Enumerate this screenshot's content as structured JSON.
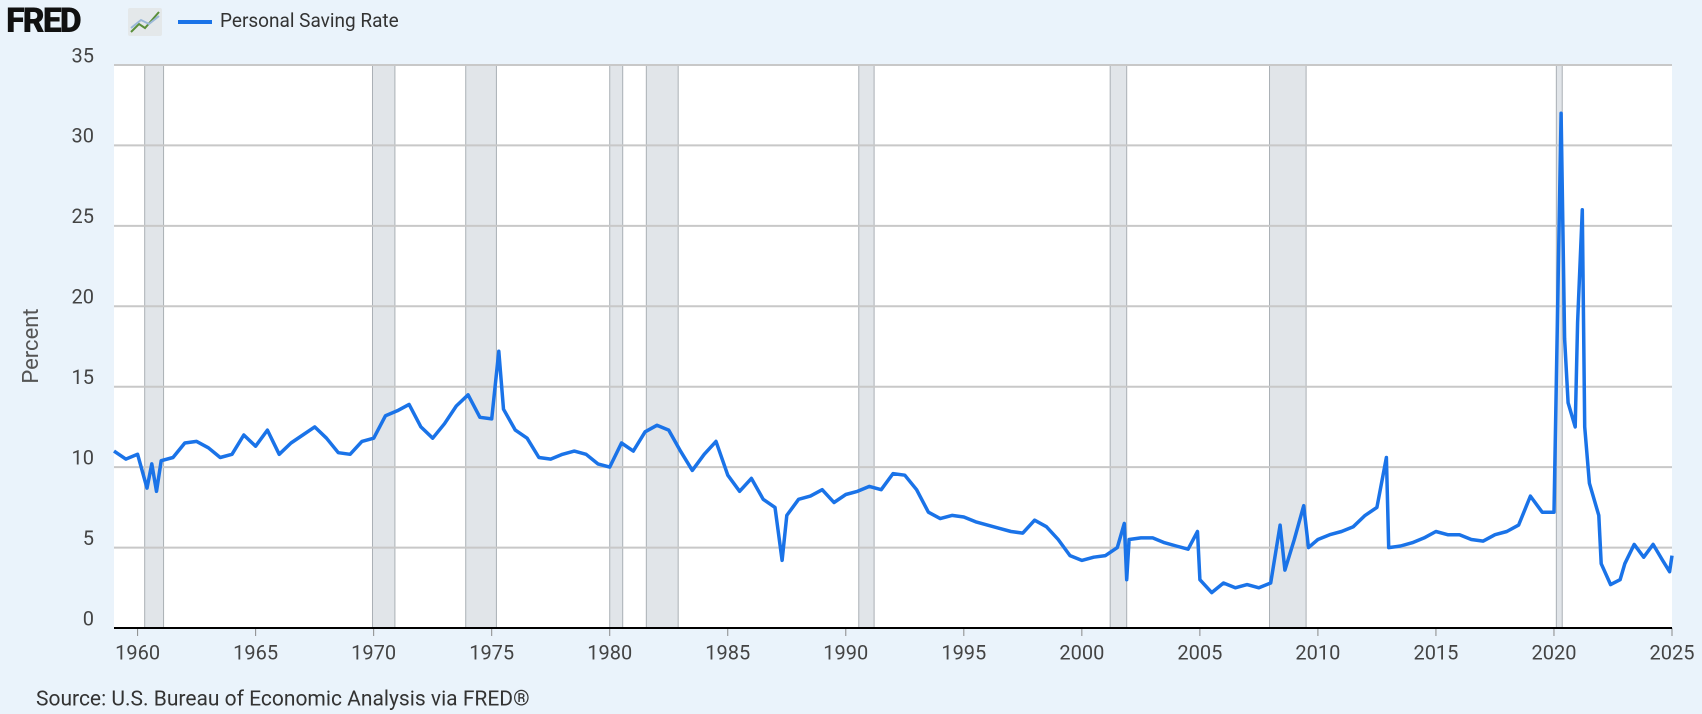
{
  "logo": "FRED",
  "source": "Source: U.S. Bureau of Economic Analysis via FRED®",
  "chart_data": {
    "type": "line",
    "ylabel": "Percent",
    "x": [
      1959.0,
      1959.5,
      1960.0,
      1960.4,
      1960.6,
      1960.8,
      1961.0,
      1961.5,
      1962.0,
      1962.5,
      1963.0,
      1963.5,
      1964.0,
      1964.5,
      1965.0,
      1965.5,
      1966.0,
      1966.5,
      1967.0,
      1967.5,
      1968.0,
      1968.5,
      1969.0,
      1969.5,
      1970.0,
      1970.5,
      1971.0,
      1971.5,
      1972.0,
      1972.5,
      1973.0,
      1973.5,
      1974.0,
      1974.5,
      1975.0,
      1975.3,
      1975.5,
      1976.0,
      1976.5,
      1977.0,
      1977.5,
      1978.0,
      1978.5,
      1979.0,
      1979.5,
      1980.0,
      1980.5,
      1981.0,
      1981.5,
      1982.0,
      1982.5,
      1983.0,
      1983.5,
      1984.0,
      1984.5,
      1985.0,
      1985.5,
      1986.0,
      1986.5,
      1987.0,
      1987.3,
      1987.5,
      1988.0,
      1988.5,
      1989.0,
      1989.5,
      1990.0,
      1990.5,
      1991.0,
      1991.5,
      1992.0,
      1992.5,
      1993.0,
      1993.5,
      1994.0,
      1994.5,
      1995.0,
      1995.5,
      1996.0,
      1996.5,
      1997.0,
      1997.5,
      1998.0,
      1998.5,
      1999.0,
      1999.5,
      2000.0,
      2000.5,
      2001.0,
      2001.5,
      2001.8,
      2001.9,
      2002.0,
      2002.5,
      2003.0,
      2003.5,
      2004.0,
      2004.5,
      2004.9,
      2005.0,
      2005.5,
      2006.0,
      2006.5,
      2007.0,
      2007.5,
      2008.0,
      2008.4,
      2008.6,
      2009.0,
      2009.4,
      2009.6,
      2010.0,
      2010.5,
      2011.0,
      2011.5,
      2012.0,
      2012.5,
      2012.9,
      2013.0,
      2013.5,
      2014.0,
      2014.5,
      2015.0,
      2015.5,
      2016.0,
      2016.5,
      2017.0,
      2017.5,
      2018.0,
      2018.5,
      2019.0,
      2019.5,
      2020.0,
      2020.3,
      2020.45,
      2020.6,
      2020.9,
      2021.0,
      2021.2,
      2021.3,
      2021.5,
      2021.9,
      2022.0,
      2022.4,
      2022.8,
      2023.0,
      2023.4,
      2023.8,
      2024.2,
      2024.6,
      2024.9,
      2025.0
    ],
    "series": [
      {
        "name": "Personal Saving Rate",
        "color": "#1a73e8",
        "values": [
          11.0,
          10.5,
          10.8,
          8.7,
          10.2,
          8.5,
          10.4,
          10.6,
          11.5,
          11.6,
          11.2,
          10.6,
          10.8,
          12.0,
          11.3,
          12.3,
          10.8,
          11.5,
          12.0,
          12.5,
          11.8,
          10.9,
          10.8,
          11.6,
          11.8,
          13.2,
          13.5,
          13.9,
          12.5,
          11.8,
          12.7,
          13.8,
          14.5,
          13.1,
          13.0,
          17.2,
          13.6,
          12.3,
          11.8,
          10.6,
          10.5,
          10.8,
          11.0,
          10.8,
          10.2,
          10.0,
          11.5,
          11.0,
          12.2,
          12.6,
          12.3,
          11.0,
          9.8,
          10.8,
          11.6,
          9.5,
          8.5,
          9.3,
          8.0,
          7.5,
          4.2,
          7.0,
          8.0,
          8.2,
          8.6,
          7.8,
          8.3,
          8.5,
          8.8,
          8.6,
          9.6,
          9.5,
          8.6,
          7.2,
          6.8,
          7.0,
          6.9,
          6.6,
          6.4,
          6.2,
          6.0,
          5.9,
          6.7,
          6.3,
          5.5,
          4.5,
          4.2,
          4.4,
          4.5,
          5.0,
          6.5,
          3.0,
          5.5,
          5.6,
          5.6,
          5.3,
          5.1,
          4.9,
          6.0,
          3.0,
          2.2,
          2.8,
          2.5,
          2.7,
          2.5,
          2.8,
          6.4,
          3.6,
          5.5,
          7.6,
          5.0,
          5.5,
          5.8,
          6.0,
          6.3,
          7.0,
          7.5,
          10.6,
          5.0,
          5.1,
          5.3,
          5.6,
          6.0,
          5.8,
          5.8,
          5.5,
          5.4,
          5.8,
          6.0,
          6.4,
          8.2,
          7.2,
          7.2,
          32.0,
          18.0,
          14.0,
          12.5,
          19.0,
          26.0,
          12.5,
          9.0,
          7.0,
          4.0,
          2.7,
          3.0,
          4.0,
          5.2,
          4.4,
          5.2,
          4.2,
          3.5,
          4.5
        ]
      }
    ],
    "recessions": [
      [
        1960.3,
        1961.1
      ],
      [
        1969.95,
        1970.9
      ],
      [
        1973.9,
        1975.2
      ],
      [
        1980.0,
        1980.55
      ],
      [
        1981.55,
        1982.9
      ],
      [
        1990.55,
        1991.2
      ],
      [
        2001.2,
        2001.9
      ],
      [
        2007.95,
        2009.5
      ],
      [
        2020.1,
        2020.35
      ]
    ],
    "xlim": [
      1959,
      2025
    ],
    "xticks": [
      1960,
      1965,
      1970,
      1975,
      1980,
      1985,
      1990,
      1995,
      2000,
      2005,
      2010,
      2015,
      2020,
      2025
    ],
    "ylim": [
      0,
      35
    ],
    "yticks": [
      0,
      5,
      10,
      15,
      20,
      25,
      30,
      35
    ],
    "grid": true
  }
}
